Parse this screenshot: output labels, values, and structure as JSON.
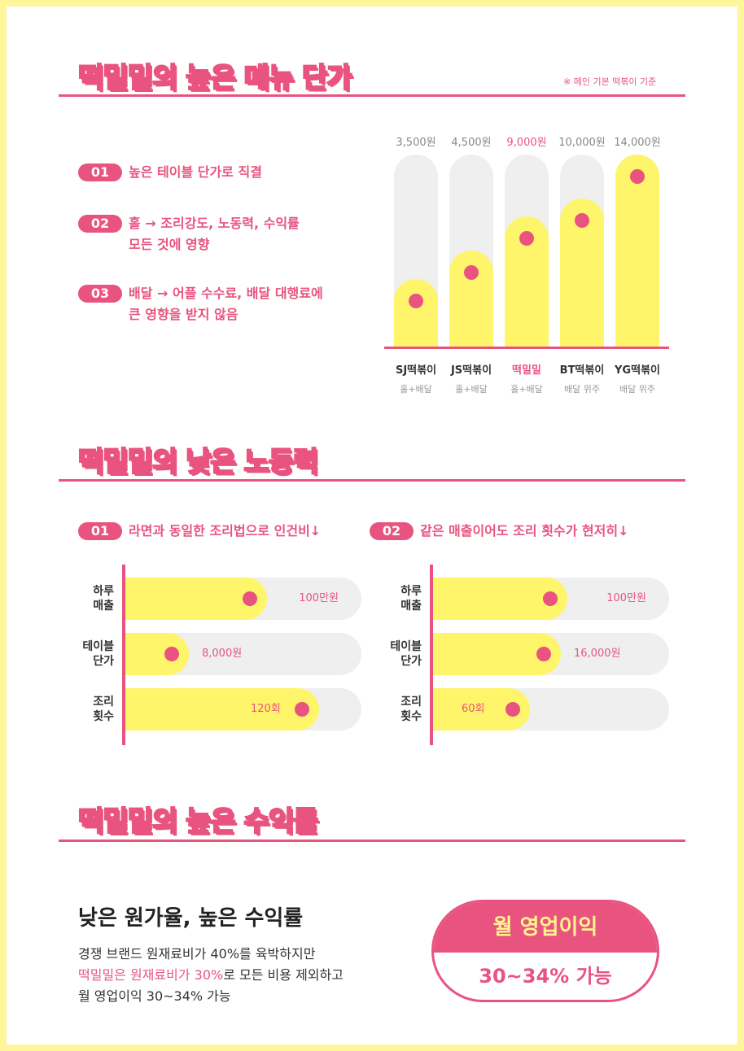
{
  "section1": {
    "heading_a": "떡밀밀의 ",
    "heading_b": "높은 메뉴 단가",
    "note": "※ 메인 기본 떡볶이 기준",
    "points": [
      {
        "num": "01",
        "text": "높은 테이블 단가로 직결"
      },
      {
        "num": "02",
        "text": "홀 → 조리강도, 노동력, 수익률",
        "text2": "모든 것에 영향"
      },
      {
        "num": "03",
        "text": "배달 → 어플 수수료, 배달 대행료에",
        "text2": "큰 영향을 받지 않음"
      }
    ]
  },
  "chart_data": {
    "type": "bar",
    "categories": [
      "SJ떡볶이",
      "JS떡볶이",
      "떡밀밀",
      "BT떡볶이",
      "YG떡볶이"
    ],
    "value_labels": [
      "3,500원",
      "4,500원",
      "9,000원",
      "10,000원",
      "14,000원"
    ],
    "sublabels": [
      "홀+배달",
      "홀+배달",
      "홀+배달",
      "배달 위주",
      "배달 위주"
    ],
    "fill_fraction": [
      0.35,
      0.5,
      0.68,
      0.77,
      1.0
    ],
    "highlight_index": 2,
    "colors": {
      "fill": "#fff56a",
      "track": "#efefef",
      "accent": "#e8547f"
    }
  },
  "section2": {
    "heading_a": "떡밀밀의 ",
    "heading_b": "낮은 노동력",
    "col1": {
      "num": "01",
      "text": "라면과 동일한 조리법으로 인건비↓",
      "rows": [
        {
          "label1": "하루",
          "label2": "매출",
          "value": "100만원",
          "fill": 0.6
        },
        {
          "label1": "테이블",
          "label2": "단가",
          "value": "8,000원",
          "fill": 0.27
        },
        {
          "label1": "조리",
          "label2": "횟수",
          "value": "120회",
          "fill": 0.82
        }
      ]
    },
    "col2": {
      "num": "02",
      "text": "같은 매출이어도 조리 횟수가 현저히↓",
      "rows": [
        {
          "label1": "하루",
          "label2": "매출",
          "value": "100만원",
          "fill": 0.57
        },
        {
          "label1": "테이블",
          "label2": "단가",
          "value": "16,000원",
          "fill": 0.54
        },
        {
          "label1": "조리",
          "label2": "횟수",
          "value": "60회",
          "fill": 0.41
        }
      ]
    }
  },
  "section3": {
    "heading_a": "떡밀밀의 ",
    "heading_b": "높은 수익률",
    "title": "낮은 원가율, 높은 수익률",
    "line1": "경쟁 브랜드 원재료비가 40%를 육박하지만",
    "line2_pink": "떡밀밀은 원재료비가 30%",
    "line2_rest": "로 모든 비용 제외하고",
    "line3": "월 영업이익 30~34% 가능",
    "pill_top": "월 영업이익",
    "pill_bottom": "30~34% 가능"
  }
}
